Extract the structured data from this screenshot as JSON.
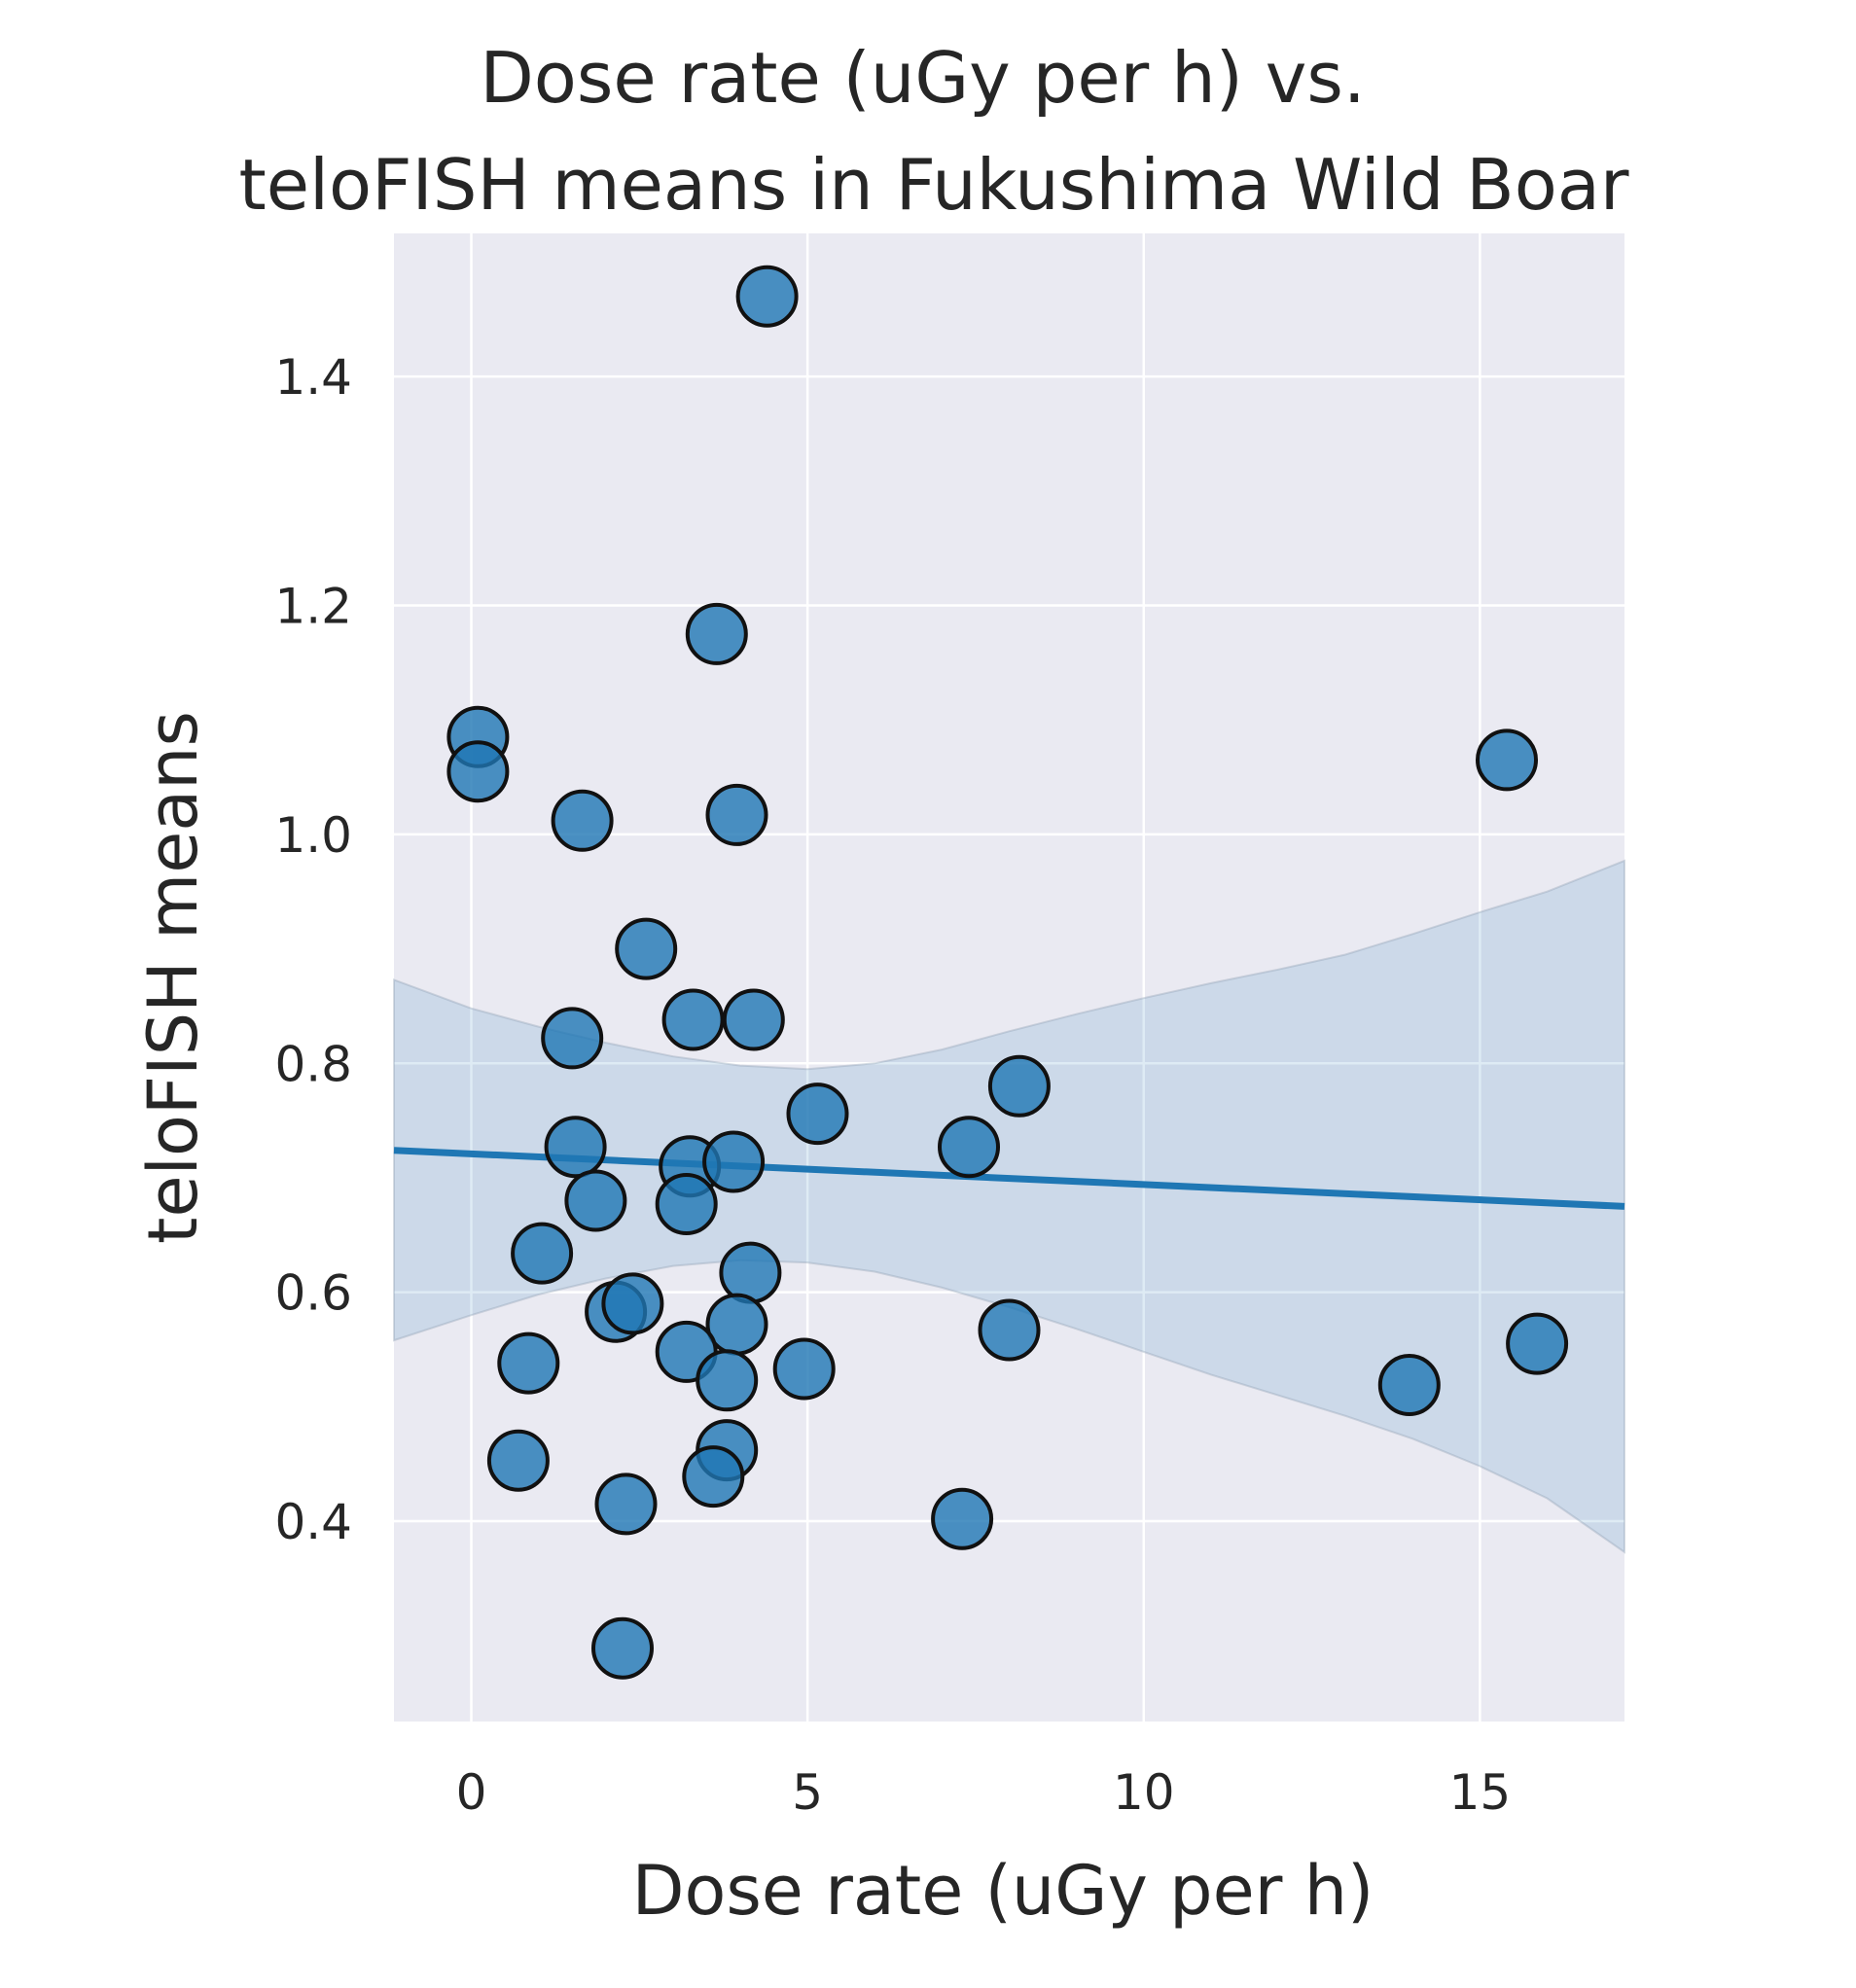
{
  "chart_data": {
    "type": "scatter",
    "title": "Dose rate (uGy per h) vs.\nteloFISH means in Fukushima Wild Boar",
    "xlabel": "Dose rate (uGy per h)",
    "ylabel": "teloFISH means",
    "xlim": [
      -1.15,
      17.15
    ],
    "ylim": [
      0.225,
      1.525
    ],
    "xticks": [
      0,
      5,
      10,
      15
    ],
    "yticks": [
      0.4,
      0.6,
      0.8,
      1.0,
      1.2,
      1.4
    ],
    "xtick_labels": [
      "0",
      "5",
      "10",
      "15"
    ],
    "ytick_labels": [
      "0.4",
      "0.6",
      "0.8",
      "1.0",
      "1.2",
      "1.4"
    ],
    "grid": true,
    "colors": {
      "background": "#eaeaf2",
      "grid": "#ffffff",
      "point_fill": "#1f77b4",
      "point_edge": "#111111",
      "regression_line": "#1f77b4",
      "confidence_band": "#1f77b4"
    },
    "points": [
      {
        "x": 4.4,
        "y": 1.47
      },
      {
        "x": 3.65,
        "y": 1.175
      },
      {
        "x": 0.1,
        "y": 1.085
      },
      {
        "x": 0.1,
        "y": 1.055
      },
      {
        "x": 15.4,
        "y": 1.065
      },
      {
        "x": 1.65,
        "y": 1.012
      },
      {
        "x": 3.95,
        "y": 1.017
      },
      {
        "x": 2.6,
        "y": 0.9
      },
      {
        "x": 3.3,
        "y": 0.838
      },
      {
        "x": 4.2,
        "y": 0.838
      },
      {
        "x": 1.5,
        "y": 0.822
      },
      {
        "x": 8.15,
        "y": 0.78
      },
      {
        "x": 5.15,
        "y": 0.756
      },
      {
        "x": 7.4,
        "y": 0.727
      },
      {
        "x": 1.55,
        "y": 0.727
      },
      {
        "x": 3.25,
        "y": 0.71
      },
      {
        "x": 3.9,
        "y": 0.714
      },
      {
        "x": 3.2,
        "y": 0.677
      },
      {
        "x": 1.85,
        "y": 0.68
      },
      {
        "x": 1.05,
        "y": 0.634
      },
      {
        "x": 4.15,
        "y": 0.617
      },
      {
        "x": 2.15,
        "y": 0.583
      },
      {
        "x": 2.4,
        "y": 0.59
      },
      {
        "x": 3.95,
        "y": 0.572
      },
      {
        "x": 8.0,
        "y": 0.567
      },
      {
        "x": 15.85,
        "y": 0.555
      },
      {
        "x": 3.2,
        "y": 0.548
      },
      {
        "x": 0.85,
        "y": 0.538
      },
      {
        "x": 4.95,
        "y": 0.533
      },
      {
        "x": 3.8,
        "y": 0.523
      },
      {
        "x": 13.95,
        "y": 0.519
      },
      {
        "x": 3.8,
        "y": 0.462
      },
      {
        "x": 0.7,
        "y": 0.453
      },
      {
        "x": 3.6,
        "y": 0.439
      },
      {
        "x": 2.3,
        "y": 0.415
      },
      {
        "x": 7.3,
        "y": 0.402
      },
      {
        "x": 2.25,
        "y": 0.289
      }
    ],
    "regression": {
      "x": [
        -1.15,
        17.15
      ],
      "y": [
        0.724,
        0.675
      ]
    },
    "confidence_band": {
      "x": [
        -1.15,
        0,
        1,
        2,
        3,
        4,
        5,
        6,
        7,
        8,
        9,
        10,
        11,
        12,
        13,
        14,
        15,
        16,
        17.15
      ],
      "upper": [
        0.873,
        0.848,
        0.832,
        0.818,
        0.806,
        0.798,
        0.795,
        0.8,
        0.812,
        0.828,
        0.843,
        0.857,
        0.87,
        0.882,
        0.895,
        0.913,
        0.932,
        0.95,
        0.977
      ],
      "lower": [
        0.558,
        0.58,
        0.598,
        0.612,
        0.623,
        0.628,
        0.626,
        0.618,
        0.604,
        0.587,
        0.568,
        0.548,
        0.528,
        0.51,
        0.492,
        0.472,
        0.448,
        0.42,
        0.373
      ]
    }
  }
}
